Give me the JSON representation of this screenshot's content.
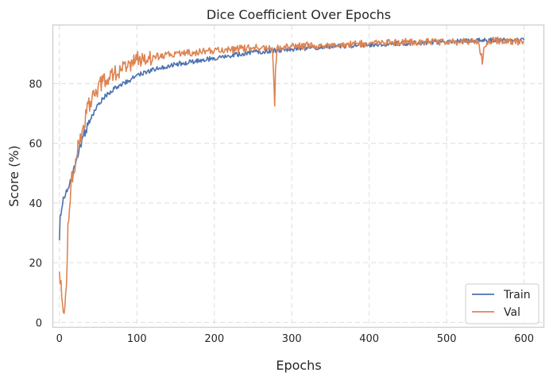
{
  "chart_data": {
    "type": "line",
    "title": "Dice Coefficient Over Epochs",
    "xlabel": "Epochs",
    "ylabel": "Score (%)",
    "xlim": [
      -8,
      625
    ],
    "ylim": [
      -1.5,
      99.5
    ],
    "xticks": [
      0,
      100,
      200,
      300,
      400,
      500,
      600
    ],
    "yticks": [
      0,
      20,
      40,
      60,
      80
    ],
    "grid": true,
    "legend_position": "lower-right",
    "series": [
      {
        "name": "Train",
        "color": "#4c72b0",
        "points": [
          [
            0,
            27.5
          ],
          [
            1,
            36
          ],
          [
            3,
            38
          ],
          [
            5,
            42
          ],
          [
            8,
            43
          ],
          [
            12,
            45
          ],
          [
            16,
            48
          ],
          [
            20,
            52
          ],
          [
            25,
            57
          ],
          [
            30,
            62
          ],
          [
            40,
            68
          ],
          [
            50,
            73
          ],
          [
            60,
            76
          ],
          [
            75,
            79
          ],
          [
            90,
            81
          ],
          [
            100,
            83
          ],
          [
            125,
            85
          ],
          [
            150,
            86.5
          ],
          [
            175,
            87.5
          ],
          [
            200,
            88.5
          ],
          [
            250,
            90.5
          ],
          [
            300,
            91.5
          ],
          [
            350,
            92.5
          ],
          [
            400,
            93
          ],
          [
            450,
            93.5
          ],
          [
            500,
            94
          ],
          [
            550,
            94.5
          ],
          [
            600,
            94.5
          ]
        ]
      },
      {
        "name": "Val",
        "color": "#dd8452",
        "points": [
          [
            0,
            17
          ],
          [
            2,
            14
          ],
          [
            4,
            6
          ],
          [
            5,
            3.5
          ],
          [
            6,
            3
          ],
          [
            7,
            5
          ],
          [
            9,
            12
          ],
          [
            11,
            33
          ],
          [
            13,
            38
          ],
          [
            15,
            47
          ],
          [
            18,
            50
          ],
          [
            22,
            55
          ],
          [
            25,
            60
          ],
          [
            30,
            65
          ],
          [
            35,
            70
          ],
          [
            40,
            74
          ],
          [
            45,
            76
          ],
          [
            50,
            79
          ],
          [
            60,
            81
          ],
          [
            70,
            83
          ],
          [
            80,
            85
          ],
          [
            90,
            87
          ],
          [
            100,
            88
          ],
          [
            125,
            89
          ],
          [
            150,
            90
          ],
          [
            175,
            90.5
          ],
          [
            200,
            91
          ],
          [
            250,
            92
          ],
          [
            275,
            92
          ],
          [
            277,
            80
          ],
          [
            278,
            72.5
          ],
          [
            279,
            85
          ],
          [
            281,
            92
          ],
          [
            300,
            92.5
          ],
          [
            350,
            93
          ],
          [
            400,
            93.5
          ],
          [
            450,
            94
          ],
          [
            500,
            94
          ],
          [
            540,
            94
          ],
          [
            545,
            90
          ],
          [
            546,
            86.5
          ],
          [
            548,
            92
          ],
          [
            555,
            94.5
          ],
          [
            600,
            94
          ]
        ]
      }
    ]
  }
}
